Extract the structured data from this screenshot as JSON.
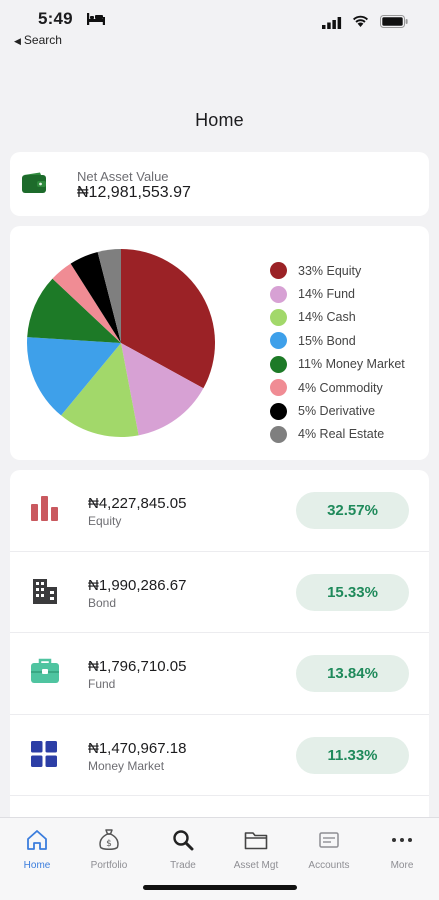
{
  "status_bar": {
    "time": "5:49",
    "back_label": "Search"
  },
  "header": {
    "title": "Home"
  },
  "net_asset": {
    "label": "Net Asset Value",
    "value": "₦12,981,553.97"
  },
  "allocation": {
    "legend": [
      {
        "label": "33% Equity",
        "color": "#9b2226"
      },
      {
        "label": "14% Fund",
        "color": "#d7a1d4"
      },
      {
        "label": "14% Cash",
        "color": "#a2d86a"
      },
      {
        "label": "15% Bond",
        "color": "#3ea0ea"
      },
      {
        "label": "11% Money Market",
        "color": "#1d7a27"
      },
      {
        "label": "4% Commodity",
        "color": "#f08c94"
      },
      {
        "label": "5% Derivative",
        "color": "#000000"
      },
      {
        "label": "4% Real Estate",
        "color": "#7f7f7f"
      }
    ]
  },
  "chart_data": {
    "type": "pie",
    "categories": [
      "Equity",
      "Fund",
      "Cash",
      "Bond",
      "Money Market",
      "Commodity",
      "Derivative",
      "Real Estate"
    ],
    "values": [
      33,
      14,
      14,
      15,
      11,
      4,
      5,
      4
    ],
    "colors": [
      "#9b2226",
      "#d7a1d4",
      "#a2d86a",
      "#3ea0ea",
      "#1d7a27",
      "#f08c94",
      "#000000",
      "#7f7f7f"
    ],
    "legend": "right"
  },
  "assets": [
    {
      "amount": "₦4,227,845.05",
      "name": "Equity",
      "percent": "32.57%",
      "icon": "bar-chart-icon"
    },
    {
      "amount": "₦1,990,286.67",
      "name": "Bond",
      "percent": "15.33%",
      "icon": "building-icon"
    },
    {
      "amount": "₦1,796,710.05",
      "name": "Fund",
      "percent": "13.84%",
      "icon": "briefcase-icon"
    },
    {
      "amount": "₦1,470,967.18",
      "name": "Money Market",
      "percent": "11.33%",
      "icon": "grid-icon"
    }
  ],
  "colors": {
    "accent": "#3b7ddd",
    "positive": "#1f8a5b",
    "pill_bg": "#e4efe9"
  },
  "tabs": [
    {
      "label": "Home",
      "icon": "home-icon",
      "active": true
    },
    {
      "label": "Portfolio",
      "icon": "money-bag-icon",
      "active": false
    },
    {
      "label": "Trade",
      "icon": "magnifier-icon",
      "active": false
    },
    {
      "label": "Asset Mgt",
      "icon": "folder-icon",
      "active": false
    },
    {
      "label": "Accounts",
      "icon": "card-icon",
      "active": false
    },
    {
      "label": "More",
      "icon": "more-icon",
      "active": false
    }
  ]
}
